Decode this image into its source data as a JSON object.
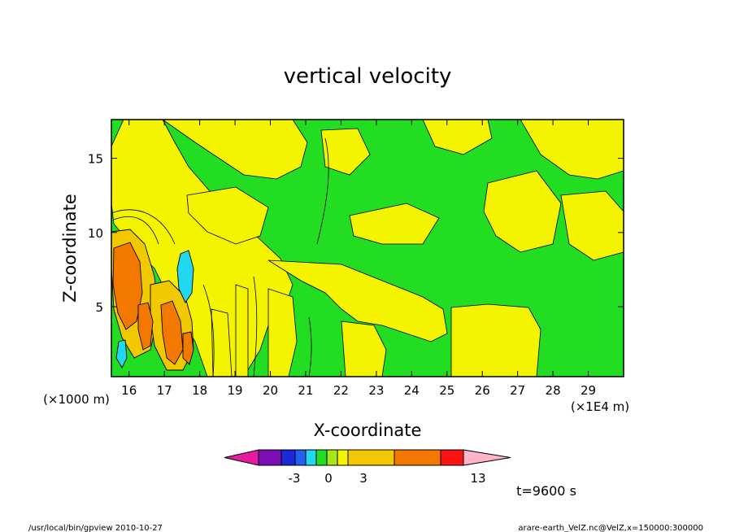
{
  "chart_data": {
    "type": "heatmap",
    "title": "vertical velocity",
    "xlabel": "X-coordinate",
    "ylabel": "Z-coordinate",
    "x_scale_note": "(×1E4 m)",
    "y_scale_note": "(×1000 m)",
    "xlim": [
      15.5,
      30
    ],
    "ylim": [
      0.3,
      17.6
    ],
    "x_ticks": [
      16,
      17,
      18,
      19,
      20,
      21,
      22,
      23,
      24,
      25,
      26,
      27,
      28,
      29
    ],
    "y_ticks": [
      5,
      10,
      15
    ],
    "time_label": "t=9600 s",
    "colorbar": {
      "colors": [
        "#e61c9e",
        "#7c0fb4",
        "#1a2ad6",
        "#2460f0",
        "#22d8ee",
        "#22dd22",
        "#a6e61c",
        "#f4f400",
        "#f2c800",
        "#f27800",
        "#fb1414",
        "#fc7878",
        "#ffb4c8"
      ],
      "tick_labels": [
        "-3",
        "0",
        "3",
        "13"
      ]
    },
    "regions": [
      {
        "level": "negative",
        "color": "#22d8ee",
        "center": [
          17.2,
          7.0
        ],
        "note": "cyan downdraft core"
      },
      {
        "level": "negative",
        "color": "#22d8ee",
        "center": [
          15.8,
          1.5
        ],
        "note": "cyan downdraft near ground"
      },
      {
        "level": "positive",
        "color": "#f27800",
        "center": [
          15.9,
          6.5
        ],
        "note": "strong updraft core"
      },
      {
        "level": "positive",
        "color": "#f27800",
        "center": [
          16.8,
          3.0
        ],
        "note": "updraft core"
      },
      {
        "level": "positive",
        "color": "#f27800",
        "center": [
          17.3,
          2.0
        ],
        "note": "updraft core"
      }
    ]
  },
  "footer": {
    "left": "/usr/local/bin/gpview   2010-10-27",
    "right": "arare-earth_VelZ.nc@VelZ,x=150000:300000"
  }
}
